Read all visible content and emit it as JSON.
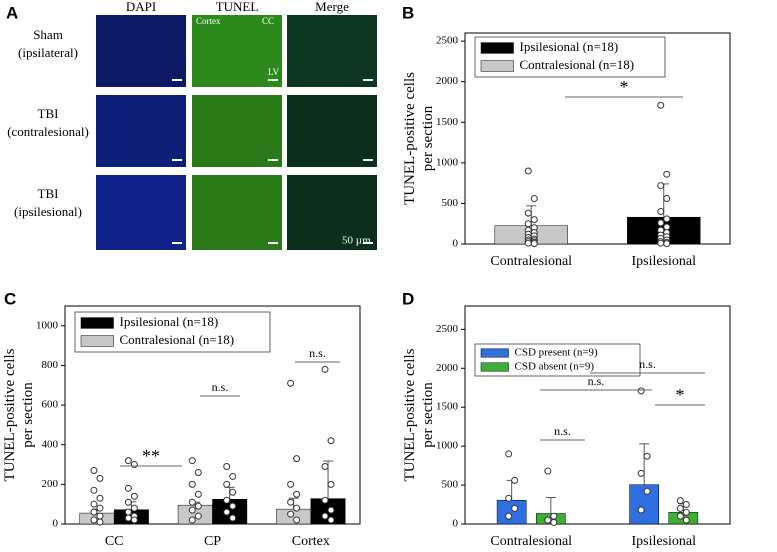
{
  "panel_a": {
    "letter": "A",
    "columns": [
      "DAPI",
      "TUNEL",
      "Merge"
    ],
    "rows": [
      [
        "Sham",
        "(ipsilateral)"
      ],
      [
        "TBI",
        "(contralesional)"
      ],
      [
        "TBI",
        "(ipsilesional)"
      ]
    ],
    "image_labels": [
      "Cortex",
      "CC",
      "LV"
    ],
    "scale": "50 µm"
  },
  "chart_data": [
    {
      "type": "bar",
      "panel": "B",
      "ylabel": [
        "TUNEL-positive cells",
        "per section"
      ],
      "categories": [
        "Contralesional",
        "Ipsilesional"
      ],
      "series": [
        {
          "name": "Ipsilesional (n=18)",
          "color": "#000000",
          "values": [
            null,
            330
          ],
          "errors": [
            null,
            410
          ],
          "points": [
            null,
            [
              1710,
              860,
              720,
              560,
              400,
              310,
              260,
              210,
              170,
              140,
              110,
              90,
              70,
              50,
              30,
              20,
              10,
              5
            ]
          ]
        },
        {
          "name": "Contralesional (n=18)",
          "color": "#c8c8c8",
          "values": [
            225,
            null
          ],
          "errors": [
            245,
            null
          ],
          "points": [
            [
              900,
              560,
              380,
              300,
              250,
              200,
              170,
              140,
              120,
              100,
              80,
              60,
              50,
              40,
              30,
              20,
              10,
              5
            ],
            null
          ]
        }
      ],
      "ylim": [
        0,
        2600
      ],
      "yticks": [
        0,
        500,
        1000,
        1500,
        2000,
        2500
      ],
      "legend": "upper left",
      "annotations": [
        "*"
      ]
    },
    {
      "type": "bar",
      "panel": "C",
      "ylabel": [
        "TUNEL-positive cells",
        "per section"
      ],
      "categories": [
        "CC",
        "CP",
        "Cortex"
      ],
      "series": [
        {
          "name": "Ipsilesional (n=18)",
          "color": "#000000",
          "values": [
            72,
            125,
            128
          ],
          "errors": [
            40,
            60,
            190
          ],
          "points": [
            [
              320,
              300,
              180,
              140,
              110,
              80,
              60,
              40,
              30,
              20
            ],
            [
              290,
              240,
              200,
              160,
              120,
              90,
              60,
              30
            ],
            [
              780,
              420,
              290,
              200,
              120,
              70,
              40,
              20
            ]
          ]
        },
        {
          "name": "Contralesional (n=18)",
          "color": "#c8c8c8",
          "values": [
            55,
            95,
            75
          ],
          "errors": [
            20,
            15,
            55
          ],
          "points": [
            [
              270,
              230,
              170,
              130,
              100,
              80,
              60,
              40,
              20,
              10
            ],
            [
              320,
              260,
              200,
              150,
              110,
              90,
              70,
              40,
              20
            ],
            [
              710,
              330,
              200,
              150,
              110,
              80,
              50,
              20
            ]
          ]
        }
      ],
      "ylim": [
        0,
        1100
      ],
      "yticks": [
        0,
        200,
        400,
        600,
        800,
        1000
      ],
      "legend": "upper left",
      "annotations": [
        "**",
        "n.s.",
        "n.s."
      ]
    },
    {
      "type": "bar",
      "panel": "D",
      "ylabel": [
        "TUNEL-positive cells",
        "per section"
      ],
      "categories": [
        "Contralesional",
        "Ipsilesional"
      ],
      "series": [
        {
          "name": "CSD present (n=9)",
          "color": "#2f6fe0",
          "values": [
            305,
            505
          ],
          "errors": [
            255,
            525
          ],
          "points": [
            [
              900,
              560,
              330,
              200,
              100
            ],
            [
              1710,
              870,
              650,
              420,
              180
            ]
          ]
        },
        {
          "name": "CSD absent (n=9)",
          "color": "#3cb034",
          "values": [
            135,
            150
          ],
          "errors": [
            205,
            110
          ],
          "points": [
            [
              680,
              100,
              50,
              20
            ],
            [
              300,
              250,
              200,
              150,
              100,
              50
            ]
          ]
        }
      ],
      "ylim": [
        0,
        2800
      ],
      "yticks": [
        0,
        500,
        1000,
        1500,
        2000,
        2500
      ],
      "legend": "upper left",
      "annotations": [
        "n.s.",
        "n.s.",
        "n.s.",
        "*"
      ]
    }
  ]
}
